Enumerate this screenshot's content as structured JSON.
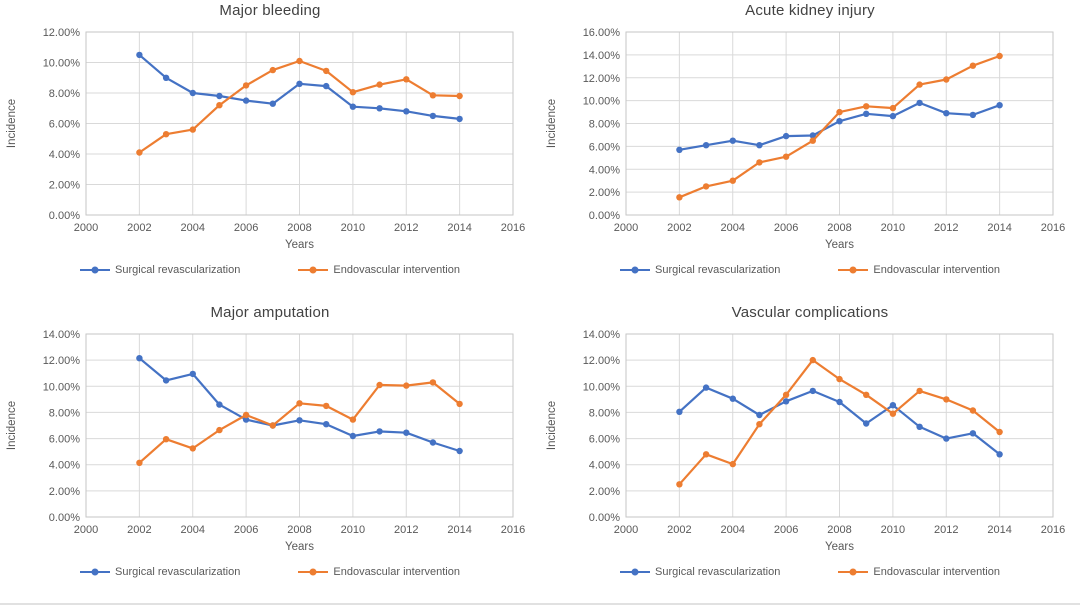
{
  "figure": {
    "background": "#ffffff",
    "bottom_rule_color": "#c9c9c9"
  },
  "colors": {
    "surgical_blue": "#4472C4",
    "endovascular_orange": "#ED7D31",
    "gridline": "#D9D9D9",
    "plot_border": "#C6C6C6",
    "tick_text": "#595959",
    "title_text": "#424242"
  },
  "chart_data": [
    {
      "type": "line",
      "title": "Major bleeding",
      "xlabel": "Years",
      "ylabel": "Incidence",
      "xlim": [
        2000,
        2016
      ],
      "xtick_step": 2,
      "ylim": [
        0,
        12
      ],
      "ytick_step": 2,
      "ytick_format": "percent-2dp",
      "grid": true,
      "legend_position": "bottom",
      "x": [
        2002,
        2003,
        2004,
        2005,
        2006,
        2007,
        2008,
        2009,
        2010,
        2011,
        2012,
        2013,
        2014
      ],
      "series": [
        {
          "name": "Surgical revascularization",
          "color": "#4472C4",
          "values": [
            10.5,
            9.0,
            8.0,
            7.8,
            7.5,
            7.3,
            8.6,
            8.45,
            7.1,
            7.0,
            6.8,
            6.5,
            6.3
          ]
        },
        {
          "name": "Endovascular intervention",
          "color": "#ED7D31",
          "values": [
            4.1,
            5.3,
            5.6,
            7.2,
            8.5,
            9.5,
            10.1,
            9.45,
            8.05,
            8.55,
            8.9,
            7.85,
            7.8
          ]
        }
      ]
    },
    {
      "type": "line",
      "title": "Acute kidney injury",
      "xlabel": "Years",
      "ylabel": "Incidence",
      "xlim": [
        2000,
        2016
      ],
      "xtick_step": 2,
      "ylim": [
        0,
        16
      ],
      "ytick_step": 2,
      "ytick_format": "percent-2dp",
      "grid": true,
      "legend_position": "bottom",
      "x": [
        2002,
        2003,
        2004,
        2005,
        2006,
        2007,
        2008,
        2009,
        2010,
        2011,
        2012,
        2013,
        2014
      ],
      "series": [
        {
          "name": "Surgical revascularization",
          "color": "#4472C4",
          "values": [
            5.7,
            6.1,
            6.5,
            6.1,
            6.9,
            6.95,
            8.2,
            8.85,
            8.65,
            9.8,
            8.9,
            8.75,
            9.6
          ]
        },
        {
          "name": "Endovascular intervention",
          "color": "#ED7D31",
          "values": [
            1.55,
            2.5,
            3.0,
            4.6,
            5.1,
            6.5,
            9.0,
            9.5,
            9.35,
            11.4,
            11.85,
            13.05,
            13.9
          ]
        }
      ]
    },
    {
      "type": "line",
      "title": "Major amputation",
      "xlabel": "Years",
      "ylabel": "Incidence",
      "xlim": [
        2000,
        2016
      ],
      "xtick_step": 2,
      "ylim": [
        0,
        14
      ],
      "ytick_step": 2,
      "ytick_format": "percent-2dp",
      "grid": true,
      "legend_position": "bottom",
      "x": [
        2002,
        2003,
        2004,
        2005,
        2006,
        2007,
        2008,
        2009,
        2010,
        2011,
        2012,
        2013,
        2014
      ],
      "series": [
        {
          "name": "Surgical revascularization",
          "color": "#4472C4",
          "values": [
            12.15,
            10.45,
            10.95,
            8.6,
            7.45,
            7.0,
            7.4,
            7.1,
            6.2,
            6.55,
            6.45,
            5.7,
            5.05
          ]
        },
        {
          "name": "Endovascular intervention",
          "color": "#ED7D31",
          "values": [
            4.15,
            5.95,
            5.25,
            6.65,
            7.8,
            7.0,
            8.7,
            8.5,
            7.45,
            10.1,
            10.05,
            10.3,
            8.65
          ]
        }
      ]
    },
    {
      "type": "line",
      "title": "Vascular complications",
      "xlabel": "Years",
      "ylabel": "Incidence",
      "xlim": [
        2000,
        2016
      ],
      "xtick_step": 2,
      "ylim": [
        0,
        14
      ],
      "ytick_step": 2,
      "ytick_format": "percent-2dp",
      "grid": true,
      "legend_position": "bottom",
      "x": [
        2002,
        2003,
        2004,
        2005,
        2006,
        2007,
        2008,
        2009,
        2010,
        2011,
        2012,
        2013,
        2014
      ],
      "series": [
        {
          "name": "Surgical revascularization",
          "color": "#4472C4",
          "values": [
            8.05,
            9.9,
            9.05,
            7.8,
            8.85,
            9.65,
            8.8,
            7.15,
            8.55,
            6.9,
            6.0,
            6.4,
            4.8
          ]
        },
        {
          "name": "Endovascular intervention",
          "color": "#ED7D31",
          "values": [
            2.5,
            4.8,
            4.05,
            7.1,
            9.35,
            12.0,
            10.55,
            9.35,
            7.9,
            9.65,
            9.0,
            8.15,
            6.5
          ]
        }
      ]
    }
  ]
}
